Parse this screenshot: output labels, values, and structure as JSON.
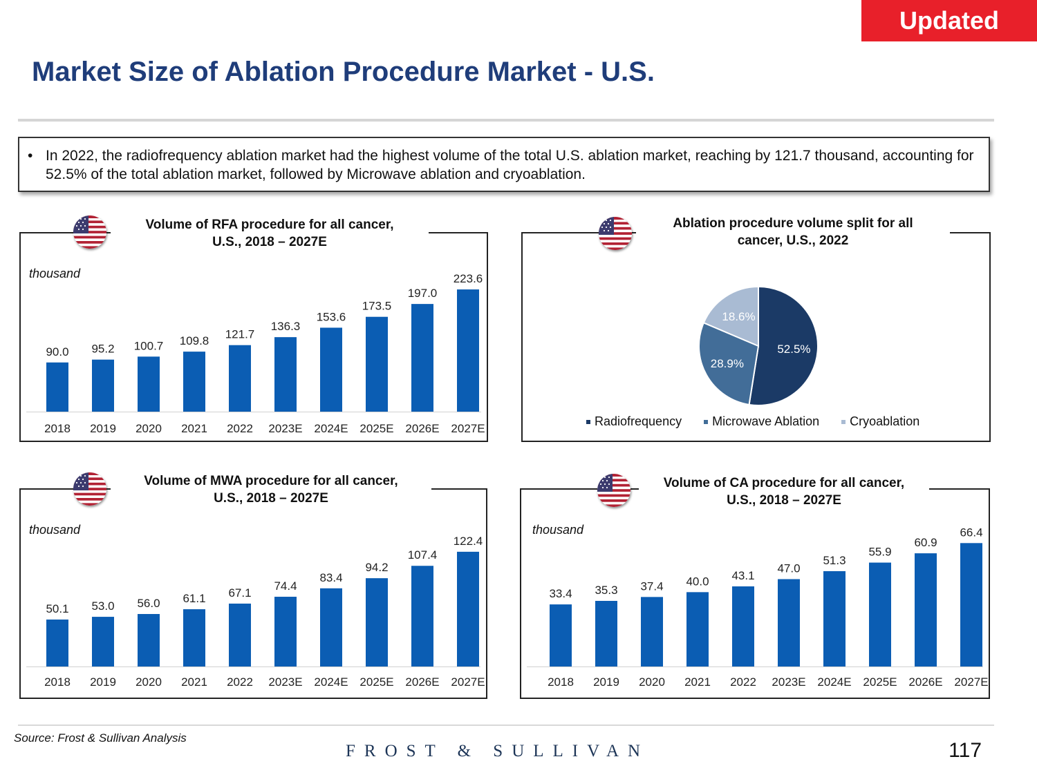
{
  "badge": "Updated",
  "title": "Market Size of Ablation Procedure Market - U.S.",
  "summary": {
    "bullet": "•",
    "text": "In 2022, the radiofrequency ablation market had the highest volume of the total U.S. ablation market, reaching by 121.7 thousand, accounting for 52.5% of the total ablation market, followed by Microwave ablation and cryoablation."
  },
  "colors": {
    "bar": "#0b5db3",
    "radiofrequency": "#1b3a66",
    "microwave": "#426d98",
    "cryo": "#a9bbd3",
    "title": "#1f3d7a",
    "badge": "#e8202a"
  },
  "chart_data": [
    {
      "id": "rfa",
      "type": "bar",
      "title_line1": "Volume of RFA procedure for all cancer,",
      "title_line2": "U.S., 2018 – 2027E",
      "ylabel": "thousand",
      "categories": [
        "2018",
        "2019",
        "2020",
        "2021",
        "2022",
        "2023E",
        "2024E",
        "2025E",
        "2026E",
        "2027E"
      ],
      "values": [
        90.0,
        95.2,
        100.7,
        109.8,
        121.7,
        136.3,
        153.6,
        173.5,
        197.0,
        223.6
      ],
      "value_labels": [
        "90.0",
        "95.2",
        "100.7",
        "109.8",
        "121.7",
        "136.3",
        "153.6",
        "173.5",
        "197.0",
        "223.6"
      ],
      "ylim": [
        0,
        230
      ]
    },
    {
      "id": "mwa",
      "type": "bar",
      "title_line1": "Volume of MWA procedure for all cancer,",
      "title_line2": "U.S., 2018 – 2027E",
      "ylabel": "thousand",
      "categories": [
        "2018",
        "2019",
        "2020",
        "2021",
        "2022",
        "2023E",
        "2024E",
        "2025E",
        "2026E",
        "2027E"
      ],
      "values": [
        50.1,
        53.0,
        56.0,
        61.1,
        67.1,
        74.4,
        83.4,
        94.2,
        107.4,
        122.4
      ],
      "value_labels": [
        "50.1",
        "53.0",
        "56.0",
        "61.1",
        "67.1",
        "74.4",
        "83.4",
        "94.2",
        "107.4",
        "122.4"
      ],
      "ylim": [
        0,
        126
      ]
    },
    {
      "id": "ca",
      "type": "bar",
      "title_line1": "Volume of CA procedure for all cancer,",
      "title_line2": "U.S., 2018 – 2027E",
      "ylabel": "thousand",
      "categories": [
        "2018",
        "2019",
        "2020",
        "2021",
        "2022",
        "2023E",
        "2024E",
        "2025E",
        "2026E",
        "2027E"
      ],
      "values": [
        33.4,
        35.3,
        37.4,
        40.0,
        43.1,
        47.0,
        51.3,
        55.9,
        60.9,
        66.4
      ],
      "value_labels": [
        "33.4",
        "35.3",
        "37.4",
        "40.0",
        "43.1",
        "47.0",
        "51.3",
        "55.9",
        "60.9",
        "66.4"
      ],
      "ylim": [
        0,
        68
      ]
    },
    {
      "id": "split",
      "type": "pie",
      "title_line1": "Ablation procedure volume split for all",
      "title_line2": "cancer, U.S., 2022",
      "labels": [
        "Radiofrequency",
        "Microwave Ablation",
        "Cryoablation"
      ],
      "values": [
        52.5,
        28.9,
        18.6
      ],
      "value_labels": [
        "52.5%",
        "28.9%",
        "18.6%"
      ],
      "legend_position": "bottom"
    }
  ],
  "footer": {
    "source": "Source: Frost & Sullivan Analysis",
    "logo": "FROST & SULLIVAN",
    "page": "117"
  }
}
